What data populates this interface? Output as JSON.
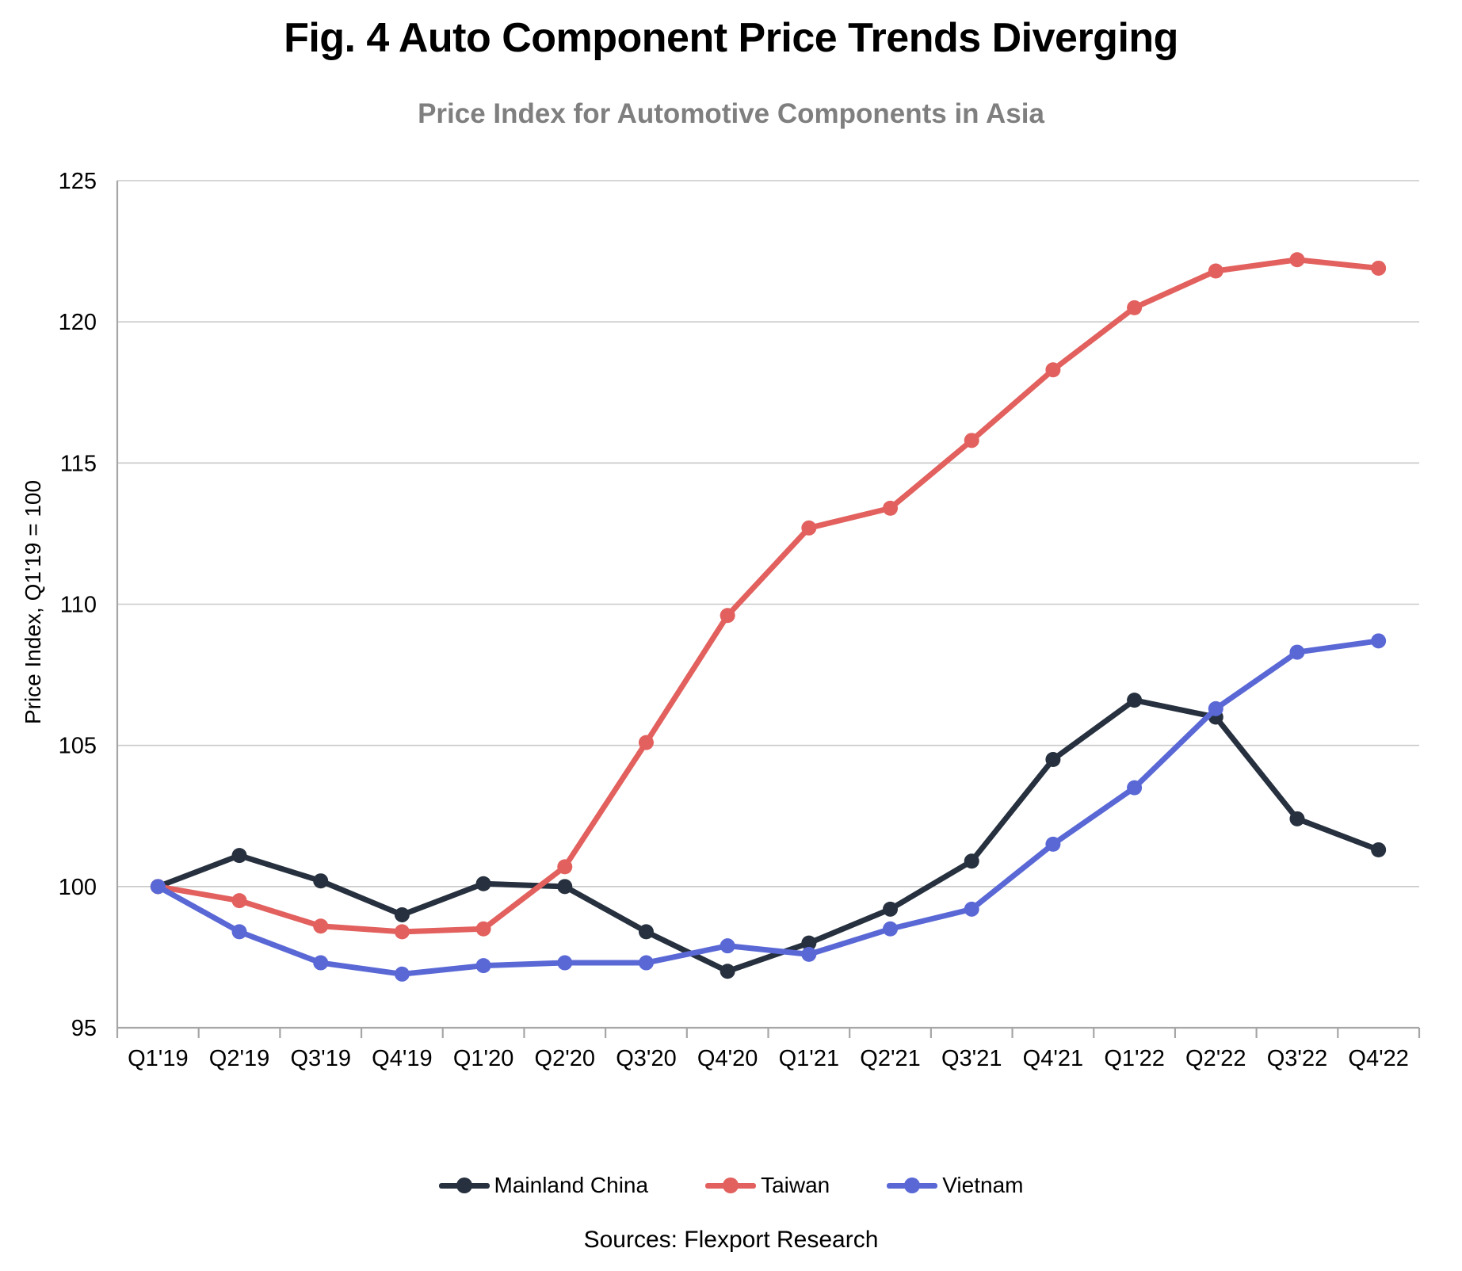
{
  "header": {
    "title": "Fig. 4 Auto Component Price Trends Diverging",
    "subtitle": "Price Index for Automotive Components in Asia"
  },
  "source_note": "Sources: Flexport Research",
  "chart_data": {
    "type": "line",
    "title": "Fig. 4 Auto Component Price Trends Diverging",
    "subtitle": "Price Index for Automotive Components in Asia",
    "xlabel": "",
    "ylabel": "Price Index, Q1'19 = 100",
    "ylim": [
      95,
      125
    ],
    "yticks": [
      95,
      100,
      105,
      110,
      115,
      120,
      125
    ],
    "grid": true,
    "legend_position": "bottom",
    "axis_color": "#a6a6a6",
    "gridline_color": "#c9c9c9",
    "categories": [
      "Q1'19",
      "Q2'19",
      "Q3'19",
      "Q4'19",
      "Q1'20",
      "Q2'20",
      "Q3'20",
      "Q4'20",
      "Q1'21",
      "Q2'21",
      "Q3'21",
      "Q4'21",
      "Q1'22",
      "Q2'22",
      "Q3'22",
      "Q4'22"
    ],
    "series": [
      {
        "name": "Mainland China",
        "color": "#26303e",
        "values": [
          100.0,
          101.1,
          100.2,
          99.0,
          100.1,
          100.0,
          98.4,
          97.0,
          98.0,
          99.2,
          100.9,
          104.5,
          106.6,
          106.0,
          102.4,
          101.3
        ]
      },
      {
        "name": "Taiwan",
        "color": "#e2615e",
        "values": [
          100.0,
          99.5,
          98.6,
          98.4,
          98.5,
          100.7,
          105.1,
          109.6,
          112.7,
          113.4,
          115.8,
          118.3,
          120.5,
          121.8,
          122.2,
          121.9
        ]
      },
      {
        "name": "Vietnam",
        "color": "#5a68d6",
        "values": [
          100.0,
          98.4,
          97.3,
          96.9,
          97.2,
          97.3,
          97.3,
          97.9,
          97.6,
          98.5,
          99.2,
          101.5,
          103.5,
          106.3,
          108.3,
          108.7
        ]
      }
    ]
  }
}
